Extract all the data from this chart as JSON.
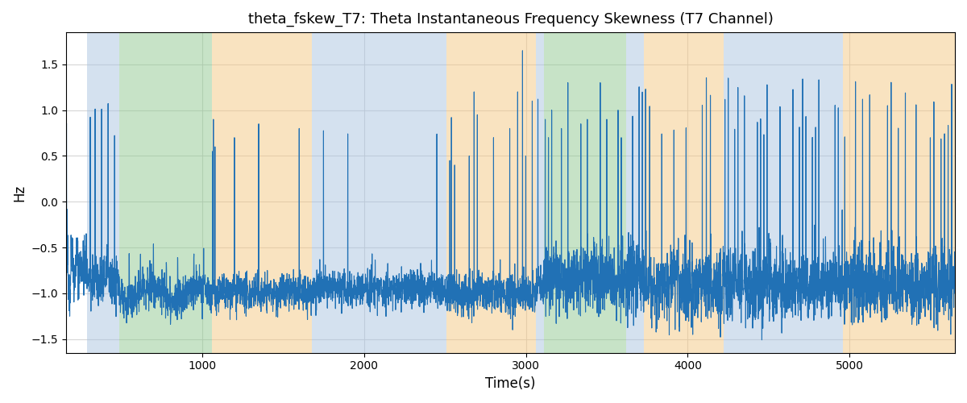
{
  "title": "theta_fskew_T7: Theta Instantaneous Frequency Skewness (T7 Channel)",
  "xlabel": "Time(s)",
  "ylabel": "Hz",
  "xlim": [
    160,
    5650
  ],
  "ylim": [
    -1.65,
    1.85
  ],
  "line_color": "#2171b5",
  "line_width": 0.8,
  "bg_color": "#ffffff",
  "grid_color": "#cccccc",
  "bands": [
    {
      "xmin": 290,
      "xmax": 490,
      "color": "#aac4e0",
      "alpha": 0.5
    },
    {
      "xmin": 490,
      "xmax": 1060,
      "color": "#90c990",
      "alpha": 0.5
    },
    {
      "xmin": 1060,
      "xmax": 1680,
      "color": "#f5c882",
      "alpha": 0.5
    },
    {
      "xmin": 1680,
      "xmax": 2160,
      "color": "#aac4e0",
      "alpha": 0.5
    },
    {
      "xmin": 2160,
      "xmax": 2510,
      "color": "#aac4e0",
      "alpha": 0.5
    },
    {
      "xmin": 2510,
      "xmax": 2570,
      "color": "#f5c882",
      "alpha": 0.5
    },
    {
      "xmin": 2570,
      "xmax": 3060,
      "color": "#f5c882",
      "alpha": 0.5
    },
    {
      "xmin": 3060,
      "xmax": 3110,
      "color": "#aac4e0",
      "alpha": 0.5
    },
    {
      "xmin": 3110,
      "xmax": 3620,
      "color": "#90c990",
      "alpha": 0.5
    },
    {
      "xmin": 3620,
      "xmax": 3730,
      "color": "#aac4e0",
      "alpha": 0.5
    },
    {
      "xmin": 3730,
      "xmax": 4220,
      "color": "#f5c882",
      "alpha": 0.5
    },
    {
      "xmin": 4220,
      "xmax": 4960,
      "color": "#aac4e0",
      "alpha": 0.5
    },
    {
      "xmin": 4960,
      "xmax": 5100,
      "color": "#f5c882",
      "alpha": 0.5
    },
    {
      "xmin": 5100,
      "xmax": 5650,
      "color": "#f5c882",
      "alpha": 0.5
    }
  ],
  "xticks": [
    1000,
    2000,
    3000,
    4000,
    5000
  ],
  "yticks": [
    -1.5,
    -1.0,
    -0.5,
    0.0,
    0.5,
    1.0,
    1.5
  ]
}
